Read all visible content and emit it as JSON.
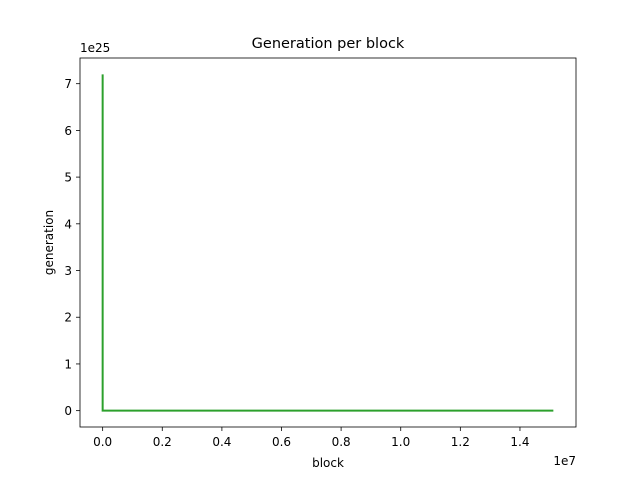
{
  "chart_data": {
    "type": "line",
    "title": "Generation per block",
    "xlabel": "block",
    "ylabel": "generation",
    "x_offset_label": "1e7",
    "y_offset_label": "1e25",
    "x_scale": 10000000,
    "y_scale": 1e+25,
    "xlim": [
      -760000,
      15880000
    ],
    "ylim": [
      -3.5e+24,
      7.55e+25
    ],
    "x_ticks": [
      0,
      2000000,
      4000000,
      6000000,
      8000000,
      10000000,
      12000000,
      14000000
    ],
    "x_tick_labels": [
      "0.0",
      "0.2",
      "0.4",
      "0.6",
      "0.8",
      "1.0",
      "1.2",
      "1.4"
    ],
    "y_ticks": [
      0,
      1e+25,
      2e+25,
      3e+25,
      4e+25,
      5e+25,
      6e+25,
      7e+25
    ],
    "y_tick_labels": [
      "0",
      "1",
      "2",
      "3",
      "4",
      "5",
      "6",
      "7"
    ],
    "grid": false,
    "legend": "none",
    "series": [
      {
        "color": "#2ca02c",
        "x": [
          0,
          0,
          30000,
          15120000
        ],
        "y": [
          7.2e+25,
          0,
          0,
          0
        ]
      }
    ]
  }
}
